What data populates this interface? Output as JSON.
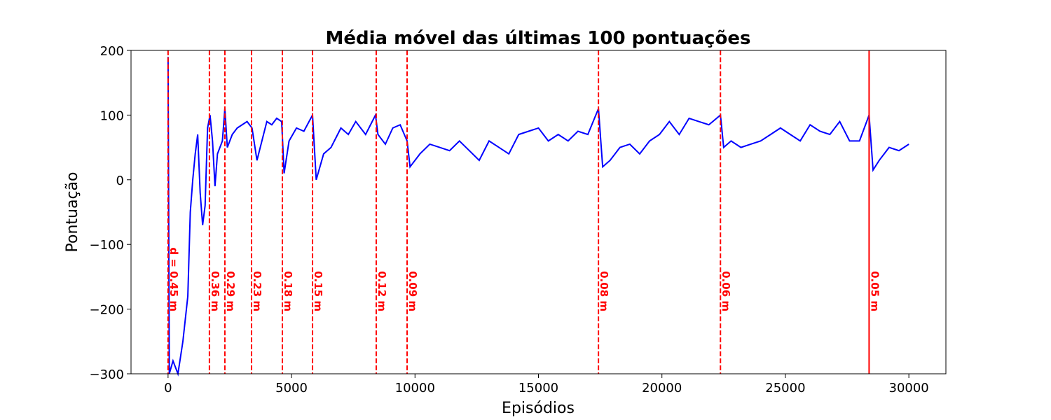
{
  "chart_data": {
    "type": "line",
    "title": "Média móvel das últimas 100 pontuações",
    "xlabel": "Episódios",
    "ylabel": "Pontuação",
    "xlim": [
      -1500,
      31500
    ],
    "ylim": [
      -300,
      200
    ],
    "xticks": [
      0,
      5000,
      10000,
      15000,
      20000,
      25000,
      30000
    ],
    "yticks": [
      {
        "value": -300,
        "label": "−300"
      },
      {
        "value": -200,
        "label": "−200"
      },
      {
        "value": -100,
        "label": "−100"
      },
      0,
      100,
      200
    ],
    "x": [
      0,
      50,
      200,
      400,
      600,
      800,
      900,
      1000,
      1100,
      1200,
      1300,
      1400,
      1500,
      1600,
      1700,
      1800,
      1900,
      2000,
      2200,
      2300,
      2400,
      2600,
      2800,
      3000,
      3200,
      3400,
      3600,
      3800,
      4000,
      4200,
      4400,
      4600,
      4700,
      4900,
      5200,
      5500,
      5850,
      6000,
      6300,
      6600,
      7000,
      7300,
      7600,
      8000,
      8400,
      8500,
      8800,
      9100,
      9400,
      9680,
      9800,
      10200,
      10600,
      11000,
      11400,
      11800,
      12200,
      12600,
      13000,
      13400,
      13800,
      14200,
      14600,
      15000,
      15400,
      15800,
      16200,
      16600,
      17000,
      17430,
      17600,
      17900,
      18300,
      18700,
      19100,
      19500,
      19900,
      20300,
      20700,
      21100,
      21500,
      21900,
      22370,
      22500,
      22800,
      23200,
      23600,
      24000,
      24400,
      24800,
      25200,
      25600,
      26000,
      26400,
      26800,
      27200,
      27600,
      28000,
      28390,
      28550,
      28800,
      29200,
      29600,
      30000
    ],
    "series": [
      {
        "color": "#0000ff",
        "values": [
          190,
          -300,
          -280,
          -300,
          -250,
          -180,
          -50,
          0,
          40,
          70,
          -20,
          -70,
          -40,
          80,
          100,
          60,
          -10,
          40,
          60,
          110,
          50,
          70,
          80,
          85,
          90,
          80,
          30,
          60,
          90,
          85,
          95,
          90,
          10,
          60,
          80,
          75,
          100,
          0,
          40,
          50,
          80,
          70,
          90,
          70,
          100,
          70,
          55,
          80,
          85,
          60,
          20,
          40,
          55,
          50,
          45,
          60,
          45,
          30,
          60,
          50,
          40,
          70,
          75,
          80,
          60,
          70,
          60,
          75,
          70,
          110,
          20,
          30,
          50,
          55,
          40,
          60,
          70,
          90,
          70,
          95,
          90,
          85,
          100,
          50,
          60,
          50,
          55,
          60,
          70,
          80,
          70,
          60,
          85,
          75,
          70,
          90,
          60,
          60,
          100,
          15,
          30,
          50,
          45,
          55
        ]
      }
    ],
    "vlines": [
      {
        "x": 0,
        "label": "d = 0.45 m",
        "color": "#ff0000",
        "linestyle": "dashed"
      },
      {
        "x": 1675,
        "label": "0.36 m",
        "color": "#ff0000",
        "linestyle": "dashed"
      },
      {
        "x": 2300,
        "label": "0.29 m",
        "color": "#ff0000",
        "linestyle": "dashed"
      },
      {
        "x": 3380,
        "label": "0.23 m",
        "color": "#ff0000",
        "linestyle": "dashed"
      },
      {
        "x": 4630,
        "label": "0.18 m",
        "color": "#ff0000",
        "linestyle": "dashed"
      },
      {
        "x": 5850,
        "label": "0.15 m",
        "color": "#ff0000",
        "linestyle": "dashed"
      },
      {
        "x": 8430,
        "label": "0.12 m",
        "color": "#ff0000",
        "linestyle": "dashed"
      },
      {
        "x": 9680,
        "label": "0.09 m",
        "color": "#ff0000",
        "linestyle": "dashed"
      },
      {
        "x": 17430,
        "label": "0.08 m",
        "color": "#ff0000",
        "linestyle": "dashed"
      },
      {
        "x": 22370,
        "label": "0.06 m",
        "color": "#ff0000",
        "linestyle": "dashed"
      },
      {
        "x": 28390,
        "label": "0.05 m",
        "color": "#ff0000",
        "linestyle": "solid"
      }
    ]
  }
}
